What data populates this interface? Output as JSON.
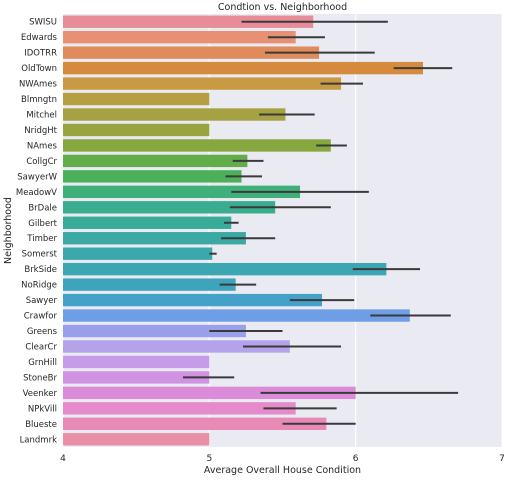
{
  "chart_data": {
    "type": "bar",
    "orientation": "horizontal",
    "title": "Condtion vs. Neighborhood",
    "xlabel": "Average Overall House Condition",
    "ylabel": "Neighborhood",
    "xlim": [
      4,
      7
    ],
    "xticks": [
      "4",
      "5",
      "6",
      "7"
    ],
    "grid": true,
    "background": "#eaeaf2",
    "categories": [
      "SWISU",
      "Edwards",
      "IDOTRR",
      "OldTown",
      "NWAmes",
      "Blmngtn",
      "Mitchel",
      "NridgHt",
      "NAmes",
      "CollgCr",
      "SawyerW",
      "MeadowV",
      "BrDale",
      "Gilbert",
      "Timber",
      "Somerst",
      "BrkSide",
      "NoRidge",
      "Sawyer",
      "Crawfor",
      "Greens",
      "ClearCr",
      "GrnHill",
      "StoneBr",
      "Veenker",
      "NPkVill",
      "Blueste",
      "Landmrk"
    ],
    "values": [
      5.71,
      5.59,
      5.75,
      6.46,
      5.9,
      5.0,
      5.52,
      5.0,
      5.83,
      5.26,
      5.22,
      5.62,
      5.45,
      5.15,
      5.25,
      5.02,
      6.21,
      5.18,
      5.77,
      6.37,
      5.25,
      5.55,
      5.0,
      5.0,
      6.0,
      5.59,
      5.8,
      5.0
    ],
    "ci_low": [
      5.22,
      5.4,
      5.38,
      6.26,
      5.76,
      5.0,
      5.34,
      5.0,
      5.73,
      5.16,
      5.11,
      5.15,
      5.14,
      5.1,
      5.08,
      5.0,
      5.98,
      5.07,
      5.55,
      6.1,
      5.0,
      5.23,
      5.0,
      4.82,
      5.35,
      5.37,
      5.5,
      5.0
    ],
    "ci_high": [
      6.22,
      5.79,
      6.13,
      6.66,
      6.05,
      5.0,
      5.72,
      5.0,
      5.94,
      5.37,
      5.36,
      6.09,
      5.83,
      5.2,
      5.45,
      5.05,
      6.44,
      5.32,
      5.99,
      6.65,
      5.5,
      5.9,
      5.0,
      5.17,
      6.7,
      5.87,
      6.0,
      5.0
    ],
    "colors": [
      "#e88c99",
      "#e89073",
      "#e08b5c",
      "#d58a3d",
      "#c99a44",
      "#b69f40",
      "#a6a142",
      "#9ba33f",
      "#86a83e",
      "#63ac4a",
      "#4cb058",
      "#3fb07a",
      "#3aad90",
      "#39ab99",
      "#3aa9a3",
      "#3ba8ab",
      "#3da6b3",
      "#3ea3bb",
      "#44a1c8",
      "#6e9fe6",
      "#9a9fec",
      "#b4a2ea",
      "#c49ce8",
      "#d093e2",
      "#db8bd8",
      "#e58bcb",
      "#e88ab6",
      "#e88fa6"
    ]
  }
}
